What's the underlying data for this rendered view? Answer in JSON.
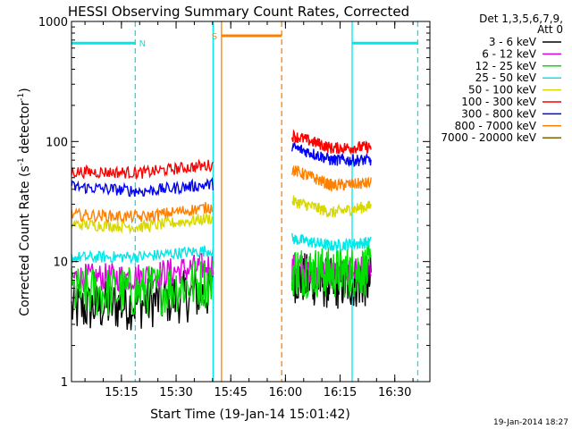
{
  "chart_data": {
    "type": "line",
    "title": "HESSI Observing Summary Count Rates, Corrected",
    "xlabel": "Start Time (19-Jan-14 15:01:42)",
    "ylabel": "Corrected Count Rate (s",
    "ylabel_sup": "-1",
    "ylabel_tail": " detector",
    "ylabel_close": ")",
    "yscale": "log",
    "xlim": [
      0,
      5900
    ],
    "ylim": [
      1,
      1000
    ],
    "x_ticks": [
      {
        "t": 822,
        "label": "15:15"
      },
      {
        "t": 1722,
        "label": "15:30"
      },
      {
        "t": 2622,
        "label": "15:45"
      },
      {
        "t": 3522,
        "label": "16:00"
      },
      {
        "t": 4422,
        "label": "16:15"
      },
      {
        "t": 5322,
        "label": "16:30"
      }
    ],
    "y_ticks": [
      {
        "v": 1,
        "label": "1"
      },
      {
        "v": 10,
        "label": "10"
      },
      {
        "v": 100,
        "label": "100"
      },
      {
        "v": 1000,
        "label": "1000"
      }
    ],
    "legend": {
      "header": [
        "Det 1,3,5,6,7,9,",
        "Att 0"
      ],
      "placement": "right"
    },
    "series": [
      {
        "name": "3 - 6 keV",
        "color": "#000000",
        "seg1": [
          4.0,
          4.5,
          5.5
        ],
        "seg2": [
          7.5,
          6.5,
          6.8
        ]
      },
      {
        "name": "6 - 12 keV",
        "color": "#e000e0",
        "seg1": [
          7.3,
          7.5,
          9.3
        ],
        "seg2": [
          9.2,
          8.0,
          8.5
        ]
      },
      {
        "name": "12 - 25 keV",
        "color": "#00e000",
        "seg1": [
          5.5,
          5.6,
          6.8
        ],
        "seg2": [
          8.5,
          8.0,
          8.5
        ]
      },
      {
        "name": "25 - 50 keV",
        "color": "#00e8e8",
        "seg1": [
          10.8,
          11.0,
          12.5
        ],
        "seg2": [
          15.5,
          13.5,
          14.5
        ]
      },
      {
        "name": "50 - 100 keV",
        "color": "#d8d800",
        "seg1": [
          20.5,
          19.5,
          23.0
        ],
        "seg2": [
          32.0,
          25.5,
          29.0
        ]
      },
      {
        "name": "100 - 300 keV",
        "color": "#ff0000",
        "seg1": [
          56.0,
          55.0,
          64.0
        ],
        "seg2": [
          112.0,
          88.0,
          90.0
        ]
      },
      {
        "name": "300 - 800 keV",
        "color": "#0000ff",
        "seg1": [
          42.0,
          38.5,
          44.0
        ],
        "seg2": [
          90.0,
          70.0,
          70.0
        ]
      },
      {
        "name": "800 - 7000 keV",
        "color": "#ff8000",
        "seg1": [
          24.5,
          23.5,
          28.5
        ],
        "seg2": [
          58.0,
          43.0,
          45.0
        ]
      },
      {
        "name": "7000 - 20000 keV",
        "color": "#806000",
        "seg1": [],
        "seg2": []
      }
    ],
    "segments": [
      {
        "t0": 0,
        "t1": 2330
      },
      {
        "t0": 3630,
        "t1": 4930
      }
    ],
    "annotations": [
      {
        "type": "flag-bar",
        "label": "N",
        "t0": 0,
        "t1": 1050,
        "y": 660,
        "color": "#00e8e8"
      },
      {
        "type": "flag-bar",
        "label": "S",
        "t0": 2470,
        "t1": 3460,
        "y": 760,
        "color": "#ff8000"
      },
      {
        "type": "flag-bar",
        "label": "",
        "t0": 4620,
        "t1": 5700,
        "y": 660,
        "color": "#00e8e8"
      }
    ],
    "vlines": [
      {
        "t": 1050,
        "color": "#00e8e8",
        "style": "dashed"
      },
      {
        "t": 2330,
        "color": "#00e8e8",
        "style": "solid"
      },
      {
        "t": 2470,
        "color": "#ff8000",
        "style": "solid"
      },
      {
        "t": 3460,
        "color": "#ff8000",
        "style": "dashed"
      },
      {
        "t": 4620,
        "color": "#00e8e8",
        "style": "solid"
      },
      {
        "t": 5700,
        "color": "#00e8e8",
        "style": "dashed"
      }
    ]
  },
  "footer": {
    "timestamp": "19-Jan-2014 18:27"
  }
}
